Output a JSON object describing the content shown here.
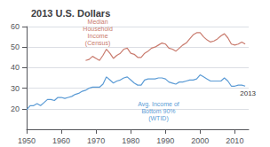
{
  "chart_data": {
    "type": "line",
    "title": "2013 U.S. Dollars",
    "xlim": [
      1950,
      2014
    ],
    "ylim": [
      10,
      60
    ],
    "xticks": [
      1950,
      1960,
      1970,
      1980,
      1990,
      2000,
      2010
    ],
    "yticks": [
      20,
      30,
      40,
      50,
      60
    ],
    "grid": true,
    "series": [
      {
        "color": "#c97b6e",
        "x": [
          1967,
          1968,
          1969,
          1970,
          1971,
          1972,
          1973,
          1974,
          1975,
          1976,
          1977,
          1978,
          1979,
          1980,
          1981,
          1982,
          1983,
          1984,
          1985,
          1986,
          1987,
          1988,
          1989,
          1990,
          1991,
          1992,
          1993,
          1994,
          1995,
          1996,
          1997,
          1998,
          1999,
          2000,
          2001,
          2002,
          2003,
          2004,
          2005,
          2006,
          2007,
          2008,
          2009,
          2010,
          2011,
          2012,
          2013
        ],
        "values": [
          43.5,
          44.0,
          45.5,
          44.5,
          43.5,
          46.0,
          49.0,
          47.0,
          44.5,
          46.0,
          47.0,
          49.0,
          49.5,
          47.0,
          46.5,
          45.0,
          45.0,
          47.0,
          48.0,
          49.5,
          50.0,
          51.0,
          52.0,
          51.5,
          49.5,
          49.0,
          48.0,
          49.5,
          51.0,
          52.0,
          54.0,
          56.0,
          57.0,
          57.0,
          55.0,
          53.5,
          52.5,
          53.0,
          54.0,
          55.5,
          56.5,
          54.5,
          51.5,
          51.0,
          51.5,
          52.5,
          51.5
        ]
      },
      {
        "color": "#5b9bd5",
        "x": [
          1950,
          1951,
          1952,
          1953,
          1954,
          1955,
          1956,
          1957,
          1958,
          1959,
          1960,
          1961,
          1962,
          1963,
          1964,
          1965,
          1966,
          1967,
          1968,
          1969,
          1970,
          1971,
          1972,
          1973,
          1974,
          1975,
          1976,
          1977,
          1978,
          1979,
          1980,
          1981,
          1982,
          1983,
          1984,
          1985,
          1986,
          1987,
          1988,
          1989,
          1990,
          1991,
          1992,
          1993,
          1994,
          1995,
          1996,
          1997,
          1998,
          1999,
          2000,
          2001,
          2002,
          2003,
          2004,
          2005,
          2006,
          2007,
          2008,
          2009,
          2010,
          2011,
          2012,
          2013
        ],
        "values": [
          19.5,
          21.5,
          21.5,
          22.5,
          21.5,
          23.0,
          24.5,
          24.5,
          24.0,
          25.5,
          25.5,
          25.0,
          25.5,
          26.0,
          27.0,
          27.5,
          28.5,
          29.0,
          30.0,
          30.5,
          30.5,
          30.5,
          32.0,
          35.5,
          34.0,
          32.5,
          33.5,
          34.0,
          35.0,
          35.5,
          34.0,
          32.5,
          31.5,
          31.5,
          34.0,
          34.5,
          34.5,
          34.5,
          35.0,
          35.0,
          34.5,
          33.0,
          32.5,
          32.0,
          33.0,
          33.0,
          33.5,
          34.0,
          34.0,
          34.5,
          36.5,
          35.5,
          34.5,
          33.5,
          33.5,
          33.5,
          33.5,
          35.0,
          33.5,
          31.0,
          31.0,
          31.5,
          31.5,
          31.0
        ]
      }
    ],
    "annotations": [
      {
        "text": "Median\nHousehold\nIncome\n(Census)",
        "x": 1970.5,
        "y": 50.5,
        "color": "#c97b6e"
      },
      {
        "text": "Avg. Income of\nBottom 90%\n(WTID)",
        "x": 1988,
        "y": 24.0,
        "color": "#5b9bd5"
      },
      {
        "text": "2013",
        "x": 2011.5,
        "y": 27.5
      }
    ]
  }
}
